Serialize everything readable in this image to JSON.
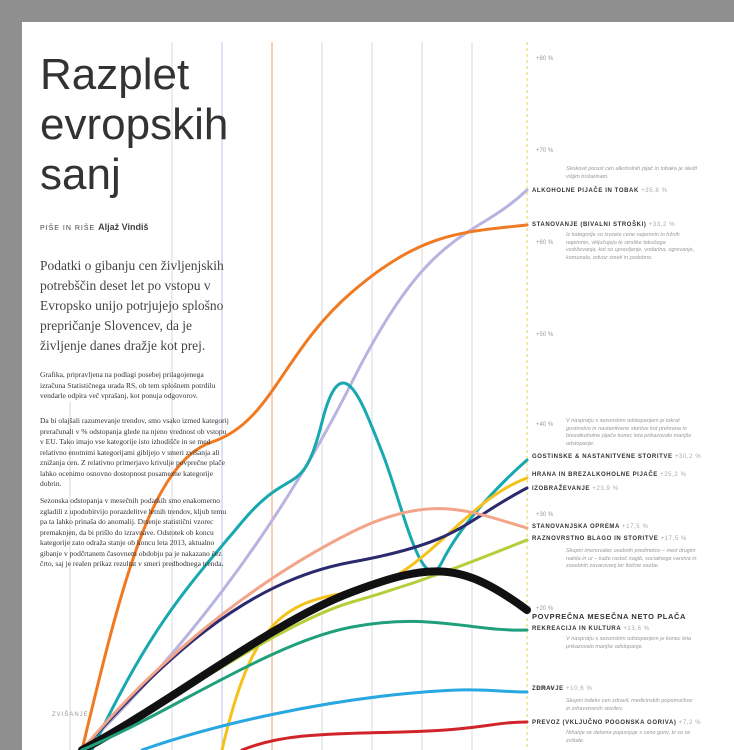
{
  "header": {
    "title": "Razplet evropskih sanj",
    "byline_label": "PIŠE IN RIŠE",
    "byline_name": "Aljaž Vindiš"
  },
  "lead": "Podatki o gibanju cen življenjskih potrebščin deset let po vstopu v Evropsko unijo potrjujejo splošno prepričanje Slovencev, da je življenje danes dražje kot prej.",
  "body": [
    "Grafika, pripravljena na podlagi posebej prilagojenega izračuna Statističnega urada RS, ob tem splošnem potrdilu vendarle odpira več vprašanj, kot ponuja odgovorov.",
    "Da bi olajšali razumevanje trendov, smo vsako izmed kategorij preračunali v % odstopanja glede na njeno vrednost ob vstopu v EU. Tako imajo vse kategorije isto izhodišče in se med relativno enotnimi kategorijami gibljejo v smeri zvišanja ali znižanja cen. Z relativno primerjavo krivulje povprečne plače lahko ocenimo osnovno dostopnost posamezne kategorije dobrin.",
    "Sezonska odstopanja v mesečnih podatkih smo enakomerno zgladili z upodobitvijo porazdelitve letnih trendov, kljub temu pa ta lahko prinaša do anomalij. Drsenje statistični vzorec premaknjen, da bi prišlo do izravnave. Odstotek ob koncu kategorije zato odraža stanje ob koncu leta 2013, aktualno gibanje v podčrtanem časovnem obdobju pa je nakazano čez črto, saj je realen prikaz rezultat v smeri predhodnega trenda."
  ],
  "axis_labels": [
    "+80 %",
    "+70 %",
    "+60 %",
    "+50 %",
    "+40 %",
    "+30 %",
    "+20 %",
    "+10 %"
  ],
  "corner_label": "ZVIŠANJE",
  "labels": [
    {
      "name": "ALKOHOLNE PIJAČE IN TOBAK",
      "change": "+35,8 %",
      "note": "Skokovit porast cen alkoholnih pijač in tobaka je sledil višjim trošarinam."
    },
    {
      "name": "STANOVANJE (BIVALNI STROŠKI)",
      "change": "+33,2 %",
      "note": "Iz kategorije so izvzete cene najemnin in tržnih najemnin, vključujejo le stroške tekočega vzdrževanja, kot so upravljanje, vodarina, ogrevanje, komunala, odvoz smeti in podobno."
    },
    {
      "name": "GOSTINSKE & NASTANITVENE STORITVE",
      "change": "+30,2 %",
      "note": "V nasprotju s sezonskim odstopanjem je tokrat gostinstvo in nastanitvene storitve kot prehrana in brezalkoholne pijače konec leta prikazovalo manjše odstopanje."
    },
    {
      "name": "HRANA IN BREZALKOHOLNE PIJAČE",
      "change": "+25,2 %"
    },
    {
      "name": "IZOBRAŽEVANJE",
      "change": "+23,9 %"
    },
    {
      "name": "STANOVANJSKA OPREMA",
      "change": "+17,5 %"
    },
    {
      "name": "RAZNOVRSTNO BLAGO IN STORITVE",
      "change": "+17,5 %",
      "note": "Skupni imenovalec osebnih predmetov – med drugim nakita in ur – kaže rastoč nagib, socialnega varstva in zasebnih zavarovanj ter fizične osebe."
    },
    {
      "name": "POVPREČNA MESEČNA NETO PLAČA"
    },
    {
      "name": "REKREACIJA IN KULTURA",
      "change": "+13,6 %",
      "note": "V nasprotju s sezonskim odstopanjem je konec leta prikazovalo manjše odstopanje."
    },
    {
      "name": "ZDRAVJE",
      "change": "+10,6 %",
      "note": "Skupni indeks cen zdravil, medicinskih pripomočkov in zdravstvenih storitev."
    },
    {
      "name": "PREVOZ (VKLJUČNO POGONSKA GORIVA)",
      "change": "+7,2 %",
      "note": "Nihanje se deloma pojasnjuje s ceno goriv, ki so se zvišale."
    }
  ]
}
